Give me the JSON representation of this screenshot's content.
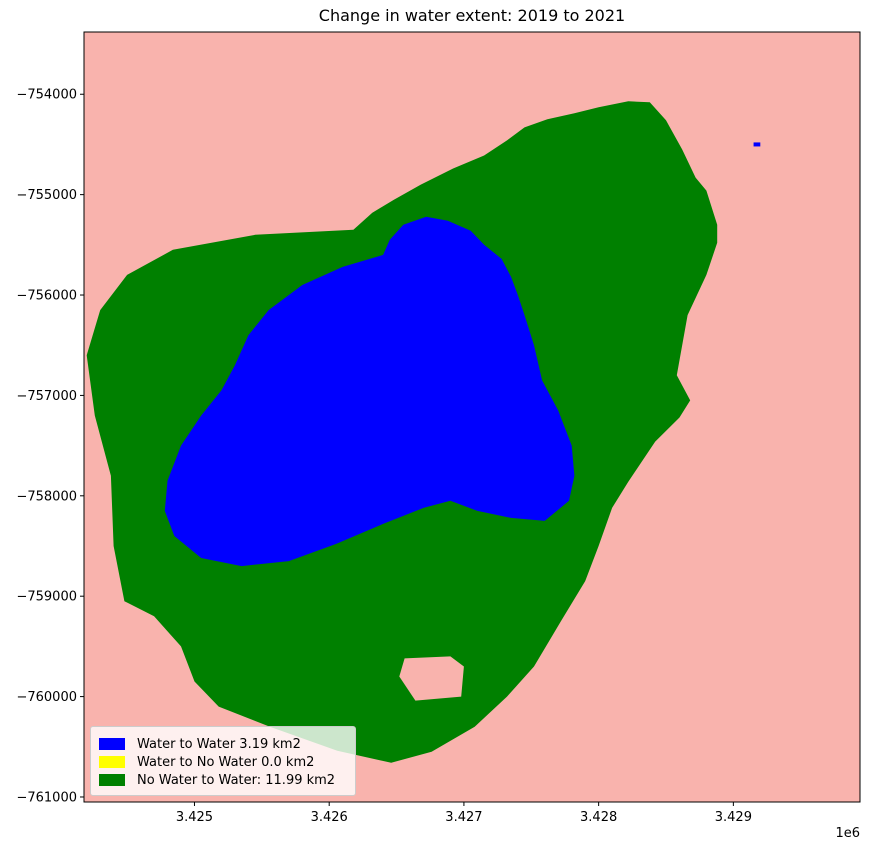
{
  "chart_data": {
    "type": "heatmap",
    "title": "Change in water extent: 2019 to 2021",
    "xlabel": "",
    "ylabel": "",
    "x_offset_label": "1e6",
    "xlim": [
      3.42418,
      3.42994
    ],
    "ylim": [
      -761050,
      -753380
    ],
    "x_ticks": [
      3.425,
      3.426,
      3.427,
      3.428,
      3.429
    ],
    "x_tick_labels": [
      "3.425",
      "3.426",
      "3.427",
      "3.428",
      "3.429"
    ],
    "y_ticks": [
      -754000,
      -755000,
      -756000,
      -757000,
      -758000,
      -759000,
      -760000,
      -761000
    ],
    "y_tick_labels": [
      "−754000",
      "−755000",
      "−756000",
      "−757000",
      "−758000",
      "−759000",
      "−760000",
      "−761000"
    ],
    "grid": false,
    "legend_position": "lower-left",
    "colors": {
      "background": "#f9b3ad",
      "water_to_water": "#0000ff",
      "water_to_no_water": "#ffff00",
      "no_water_to_water": "#008000"
    },
    "series": [
      {
        "name": "Water to Water 3.19 km2",
        "color": "#0000ff",
        "area_km2": 3.19
      },
      {
        "name": "Water to No Water 0.0 km2",
        "color": "#ffff00",
        "area_km2": 0.0
      },
      {
        "name": "No Water to Water: 11.99 km2",
        "color": "#008000",
        "area_km2": 11.99
      }
    ],
    "regions": {
      "no_water_to_water_outline": [
        [
          3.42618,
          -755350
        ],
        [
          3.42632,
          -755180
        ],
        [
          3.42648,
          -755050
        ],
        [
          3.42668,
          -754900
        ],
        [
          3.42692,
          -754740
        ],
        [
          3.42715,
          -754610
        ],
        [
          3.42732,
          -754460
        ],
        [
          3.42745,
          -754330
        ],
        [
          3.42762,
          -754250
        ],
        [
          3.42782,
          -754190
        ],
        [
          3.428,
          -754130
        ],
        [
          3.42822,
          -754070
        ],
        [
          3.42838,
          -754080
        ],
        [
          3.4285,
          -754260
        ],
        [
          3.42862,
          -754550
        ],
        [
          3.42872,
          -754830
        ],
        [
          3.4288,
          -754960
        ],
        [
          3.42888,
          -755300
        ],
        [
          3.42888,
          -755480
        ],
        [
          3.4288,
          -755800
        ],
        [
          3.42866,
          -756200
        ],
        [
          3.42858,
          -756800
        ],
        [
          3.42868,
          -757050
        ],
        [
          3.4286,
          -757220
        ],
        [
          3.42842,
          -757460
        ],
        [
          3.42822,
          -757860
        ],
        [
          3.4281,
          -758120
        ],
        [
          3.428,
          -758500
        ],
        [
          3.4279,
          -758850
        ],
        [
          3.42772,
          -759250
        ],
        [
          3.42752,
          -759700
        ],
        [
          3.42732,
          -760000
        ],
        [
          3.42708,
          -760300
        ],
        [
          3.42676,
          -760550
        ],
        [
          3.42646,
          -760660
        ],
        [
          3.42606,
          -760540
        ],
        [
          3.42556,
          -760300
        ],
        [
          3.42518,
          -760100
        ],
        [
          3.425,
          -759850
        ],
        [
          3.4249,
          -759500
        ],
        [
          3.4247,
          -759200
        ],
        [
          3.42448,
          -759050
        ],
        [
          3.4244,
          -758500
        ],
        [
          3.42438,
          -757800
        ],
        [
          3.42426,
          -757200
        ],
        [
          3.4242,
          -756600
        ],
        [
          3.4243,
          -756150
        ],
        [
          3.4245,
          -755800
        ],
        [
          3.42484,
          -755550
        ],
        [
          3.42545,
          -755400
        ],
        [
          3.42618,
          -755350
        ]
      ],
      "notch": [
        [
          3.42656,
          -759620
        ],
        [
          3.4269,
          -759600
        ],
        [
          3.427,
          -759700
        ],
        [
          3.42698,
          -760000
        ],
        [
          3.42664,
          -760040
        ],
        [
          3.42652,
          -759800
        ],
        [
          3.42656,
          -759620
        ]
      ],
      "water_to_water_outline": [
        [
          3.4264,
          -755600
        ],
        [
          3.42645,
          -755450
        ],
        [
          3.42655,
          -755300
        ],
        [
          3.42672,
          -755220
        ],
        [
          3.42688,
          -755260
        ],
        [
          3.42705,
          -755360
        ],
        [
          3.42715,
          -755500
        ],
        [
          3.42728,
          -755640
        ],
        [
          3.42735,
          -755820
        ],
        [
          3.4274,
          -756000
        ],
        [
          3.42745,
          -756200
        ],
        [
          3.42752,
          -756500
        ],
        [
          3.42758,
          -756850
        ],
        [
          3.4277,
          -757150
        ],
        [
          3.4278,
          -757500
        ],
        [
          3.42782,
          -757800
        ],
        [
          3.42778,
          -758050
        ],
        [
          3.4276,
          -758250
        ],
        [
          3.42735,
          -758220
        ],
        [
          3.4271,
          -758150
        ],
        [
          3.4269,
          -758050
        ],
        [
          3.4267,
          -758120
        ],
        [
          3.4264,
          -758280
        ],
        [
          3.42605,
          -758480
        ],
        [
          3.4257,
          -758650
        ],
        [
          3.42535,
          -758700
        ],
        [
          3.42505,
          -758620
        ],
        [
          3.42485,
          -758400
        ],
        [
          3.42478,
          -758150
        ],
        [
          3.4248,
          -757850
        ],
        [
          3.4249,
          -757500
        ],
        [
          3.42505,
          -757200
        ],
        [
          3.4252,
          -756950
        ],
        [
          3.4253,
          -756700
        ],
        [
          3.4254,
          -756400
        ],
        [
          3.42555,
          -756150
        ],
        [
          3.4258,
          -755900
        ],
        [
          3.4261,
          -755720
        ],
        [
          3.4264,
          -755600
        ]
      ],
      "water_small_patch": [
        [
          3.42915,
          -754480
        ],
        [
          3.4292,
          -754520
        ]
      ]
    }
  }
}
